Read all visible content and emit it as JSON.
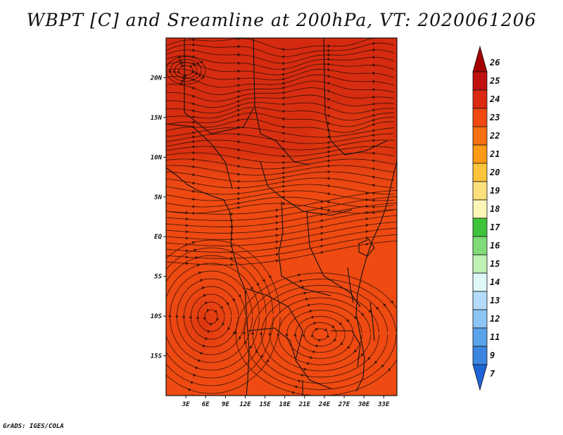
{
  "title": "WBPT [C] and Sreamline at 200hPa, VT: 2020061206",
  "footer": "GrADS: IGES/COLA",
  "map": {
    "region": "East/Central Africa",
    "lon_range": [
      0,
      35
    ],
    "lat_range": [
      -20,
      25
    ],
    "lat_ticks": [
      {
        "label": "20N",
        "value": 20
      },
      {
        "label": "15N",
        "value": 15
      },
      {
        "label": "10N",
        "value": 10
      },
      {
        "label": "5N",
        "value": 5
      },
      {
        "label": "EQ",
        "value": 0
      },
      {
        "label": "5S",
        "value": -5
      },
      {
        "label": "10S",
        "value": -10
      },
      {
        "label": "15S",
        "value": -15
      }
    ],
    "lon_ticks": [
      {
        "label": "3E",
        "value": 3
      },
      {
        "label": "6E",
        "value": 6
      },
      {
        "label": "9E",
        "value": 9
      },
      {
        "label": "12E",
        "value": 12
      },
      {
        "label": "15E",
        "value": 15
      },
      {
        "label": "18E",
        "value": 18
      },
      {
        "label": "21E",
        "value": 21
      },
      {
        "label": "24E",
        "value": 24
      },
      {
        "label": "27E",
        "value": 27
      },
      {
        "label": "30E",
        "value": 30
      },
      {
        "label": "33E",
        "value": 33
      }
    ],
    "field_colors": {
      "dominant": "#ee4a12",
      "north_band": "#d52a10",
      "warm_core": "#dc3410"
    }
  },
  "colorbar": {
    "levels": [
      {
        "label": "26",
        "color": "#a50000"
      },
      {
        "label": "25",
        "color": "#c01010"
      },
      {
        "label": "24",
        "color": "#dc2a12"
      },
      {
        "label": "23",
        "color": "#f04a10"
      },
      {
        "label": "22",
        "color": "#f87010"
      },
      {
        "label": "21",
        "color": "#fa9a16"
      },
      {
        "label": "20",
        "color": "#fcc43a"
      },
      {
        "label": "19",
        "color": "#fde07c"
      },
      {
        "label": "18",
        "color": "#fdf6b8"
      },
      {
        "label": "17",
        "color": "#3ec43a"
      },
      {
        "label": "16",
        "color": "#7fdc78"
      },
      {
        "label": "15",
        "color": "#bff0b4"
      },
      {
        "label": "14",
        "color": "#e0f8f8"
      },
      {
        "label": "13",
        "color": "#b4dcfa"
      },
      {
        "label": "12",
        "color": "#8cc4f4"
      },
      {
        "label": "11",
        "color": "#5aa2ea"
      },
      {
        "label": "9",
        "color": "#3c86e0"
      },
      {
        "label": "7",
        "color": "#1e64d4"
      }
    ]
  }
}
